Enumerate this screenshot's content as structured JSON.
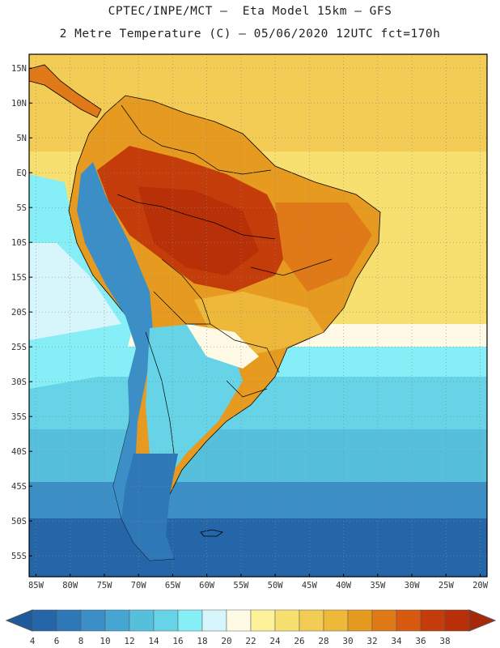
{
  "header": {
    "line1": "CPTEC/INPE/MCT –  Eta Model 15km – GFS",
    "line2": "2 Metre Temperature (C) – 05/06/2020 12UTC fct=170h"
  },
  "map": {
    "lat_labels": [
      "15N",
      "10N",
      "5N",
      "EQ",
      "5S",
      "10S",
      "15S",
      "20S",
      "25S",
      "30S",
      "35S",
      "40S",
      "45S",
      "50S",
      "55S"
    ],
    "lat_values": [
      15,
      10,
      5,
      0,
      -5,
      -10,
      -15,
      -20,
      -25,
      -30,
      -35,
      -40,
      -45,
      -50,
      -55
    ],
    "lon_labels": [
      "85W",
      "80W",
      "75W",
      "70W",
      "65W",
      "60W",
      "55W",
      "50W",
      "45W",
      "40W",
      "35W",
      "30W",
      "25W",
      "20W"
    ],
    "lon_values": [
      -85,
      -80,
      -75,
      -70,
      -65,
      -60,
      -55,
      -50,
      -45,
      -40,
      -35,
      -30,
      -25,
      -20
    ],
    "lat_range": [
      -58,
      17
    ],
    "lon_range": [
      -86,
      -19
    ]
  },
  "colorbar": {
    "labels": [
      "4",
      "6",
      "8",
      "10",
      "12",
      "14",
      "16",
      "18",
      "20",
      "22",
      "24",
      "26",
      "28",
      "30",
      "32",
      "34",
      "36",
      "38"
    ],
    "colors": [
      "#2566a8",
      "#2e78b8",
      "#3b8fc6",
      "#46a6d2",
      "#56c0dc",
      "#66d4e6",
      "#86eef6",
      "#d6f6fc",
      "#fefae6",
      "#fdf29a",
      "#f8e070",
      "#f2cc54",
      "#eeb83a",
      "#e69a20",
      "#e07a18",
      "#d85a10",
      "#c43c0a",
      "#b83008"
    ],
    "low_arrow_color": "#1e5b9c",
    "high_arrow_color": "#a8280a"
  },
  "colors": {
    "background": "#ffffff",
    "frame": "#000000",
    "grid": "#888888",
    "coast": "#000000"
  }
}
